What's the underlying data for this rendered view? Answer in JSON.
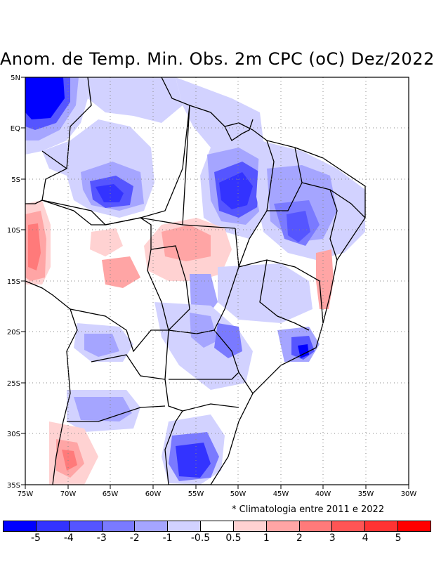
{
  "title": "Anom. de Temp. Min. Obs. 2m CPC (oC) Dez/2022",
  "note": "* Climatologia entre 2011 e 2022",
  "axes": {
    "lat_labels": [
      "5N",
      "EQ",
      "5S",
      "10S",
      "15S",
      "20S",
      "25S",
      "30S",
      "35S"
    ],
    "lat_values": [
      5,
      0,
      -5,
      -10,
      -15,
      -20,
      -25,
      -30,
      -35
    ],
    "lon_labels": [
      "75W",
      "70W",
      "65W",
      "60W",
      "55W",
      "50W",
      "45W",
      "40W",
      "35W",
      "30W"
    ],
    "lon_values": [
      -75,
      -70,
      -65,
      -60,
      -55,
      -50,
      -45,
      -40,
      -35,
      -30
    ]
  },
  "legend": {
    "labels": [
      "-5",
      "-4",
      "-3",
      "-2",
      "-1",
      "-0.5",
      "0.5",
      "1",
      "2",
      "3",
      "4",
      "5"
    ],
    "colors": [
      "#0000ff",
      "#3333ff",
      "#5555ff",
      "#7a7aff",
      "#a5a5ff",
      "#d2d2ff",
      "#ffffff",
      "#ffd2d2",
      "#ffa5a5",
      "#ff7a7a",
      "#ff5555",
      "#ff3333",
      "#ff0000"
    ]
  }
}
